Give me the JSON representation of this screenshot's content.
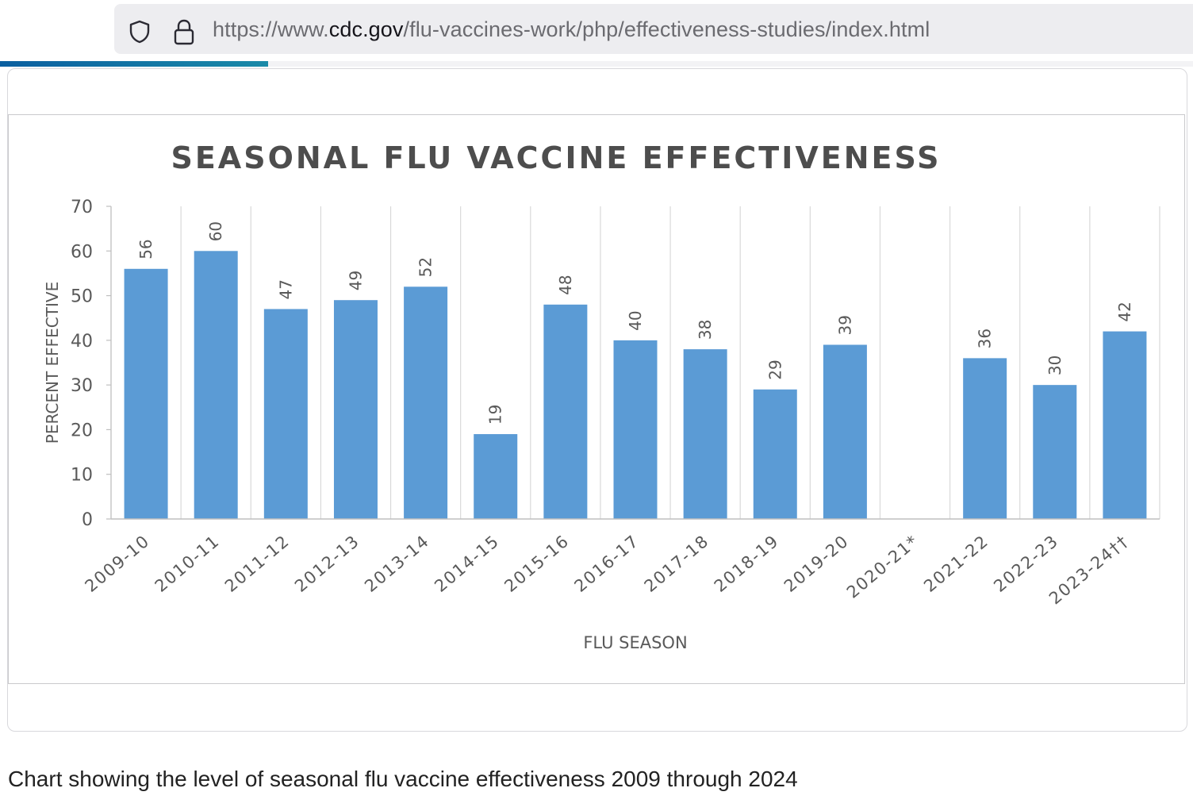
{
  "browser": {
    "url_prefix": "https://www.",
    "url_host": "cdc.gov",
    "url_path": "/flu-vaccines-work/php/effectiveness-studies/index.html",
    "progress": 0.225,
    "progress_color": "#0b5fa0"
  },
  "caption": "Chart showing the level of seasonal flu vaccine effectiveness 2009 through 2024",
  "chart_data": {
    "type": "bar",
    "title": "SEASONAL FLU VACCINE EFFECTIVENESS",
    "xlabel": "FLU SEASON",
    "ylabel": "PERCENT EFFECTIVE",
    "ylim": [
      0,
      70
    ],
    "yticks": [
      0,
      10,
      20,
      30,
      40,
      50,
      60,
      70
    ],
    "categories": [
      "2009-10",
      "2010-11",
      "2011-12",
      "2012-13",
      "2013-14",
      "2014-15",
      "2015-16",
      "2016-17",
      "2017-18",
      "2018-19",
      "2019-20",
      "2020-21*",
      "2021-22",
      "2022-23",
      "2023-24††"
    ],
    "values": [
      56,
      60,
      47,
      49,
      52,
      19,
      48,
      40,
      38,
      29,
      39,
      null,
      36,
      30,
      42
    ],
    "bar_color": "#5b9bd5",
    "grid": "vertical",
    "data_labels": true
  }
}
